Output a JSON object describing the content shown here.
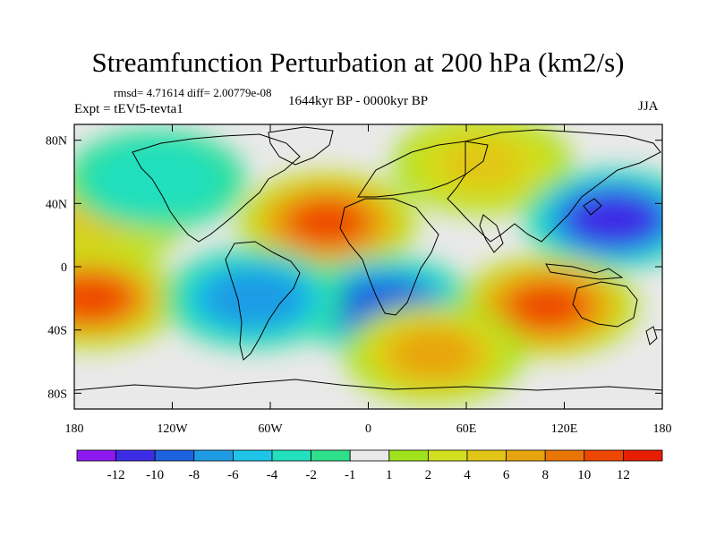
{
  "title": "Streamfunction Perturbation at 200 hPa (km2/s)",
  "stats": "rmsd= 4.71614 diff= 2.00779e-08",
  "experiment": "Expt = tEVt5-tevta1",
  "period": "1644kyr BP - 0000kyr BP",
  "season": "JJA",
  "map": {
    "lon_range": [
      -180,
      180
    ],
    "lat_range": [
      -90,
      90
    ],
    "x_ticks": [
      {
        "value": -180,
        "label": "180"
      },
      {
        "value": -120,
        "label": "120W"
      },
      {
        "value": -60,
        "label": "60W"
      },
      {
        "value": 0,
        "label": "0"
      },
      {
        "value": 60,
        "label": "60E"
      },
      {
        "value": 120,
        "label": "120E"
      },
      {
        "value": 180,
        "label": "180"
      }
    ],
    "y_ticks": [
      {
        "value": 80,
        "label": "80N"
      },
      {
        "value": 40,
        "label": "40N"
      },
      {
        "value": 0,
        "label": "0"
      },
      {
        "value": -40,
        "label": "40S"
      },
      {
        "value": -80,
        "label": "80S"
      }
    ],
    "anomaly_centers": [
      {
        "name": "north-pacific-west-high",
        "lon": -165,
        "lat": 32,
        "value": 5
      },
      {
        "name": "north-atlantic-high",
        "lon": -25,
        "lat": 28,
        "value": 11
      },
      {
        "name": "north-asia-high",
        "lon": 70,
        "lat": 65,
        "value": 5
      },
      {
        "name": "west-pacific-low",
        "lon": 150,
        "lat": 30,
        "value": -12
      },
      {
        "name": "south-pacific-east-high",
        "lon": -170,
        "lat": -20,
        "value": 10
      },
      {
        "name": "south-atlantic-low",
        "lon": 10,
        "lat": -25,
        "value": -10
      },
      {
        "name": "south-pacific-low",
        "lon": -70,
        "lat": -20,
        "value": -8
      },
      {
        "name": "australia-high",
        "lon": 110,
        "lat": -25,
        "value": 11
      },
      {
        "name": "southern-ocean-high",
        "lon": 40,
        "lat": -55,
        "value": 6
      },
      {
        "name": "north-pacific-mid-low",
        "lon": -130,
        "lat": 55,
        "value": -3
      }
    ]
  },
  "colorbar": {
    "colors": [
      "#8c1aee",
      "#3c2ce6",
      "#1d63e0",
      "#1f9be4",
      "#1ec5e8",
      "#22dfbd",
      "#2ee08a",
      "#e9e9e9",
      "#a0e31c",
      "#d2de1e",
      "#e2c617",
      "#e8a40f",
      "#ea7507",
      "#ee4603",
      "#e81e02"
    ],
    "labels": [
      "-12",
      "-10",
      "-8",
      "-6",
      "-4",
      "-2",
      "-1",
      "1",
      "2",
      "4",
      "6",
      "8",
      "10",
      "12"
    ]
  }
}
